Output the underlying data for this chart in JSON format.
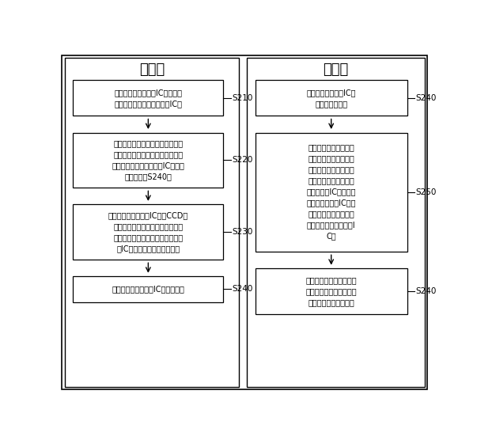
{
  "title_left": "放料部",
  "title_right": "取料部",
  "bg_color": "#ffffff",
  "box_color": "#ffffff",
  "box_edge_color": "#000000",
  "text_color": "#000000",
  "arrow_color": "#000000",
  "left_boxes": [
    {
      "label": "S210",
      "text": "检测用于存放待烧录IC的放料点\n待烧录料区是否放满未烧录IC；"
    },
    {
      "label": "S220",
      "text": "若已放满，则控制所述取放料部根\n据预设的取放料点坐标至所述待烧\n录料区放料点吸取待烧录IC；否则\n，执行步骤S240；"
    },
    {
      "label": "S230",
      "text": "对所述吸取的待烧录IC进行CCD比\n对，若比对结果符合处于一预先设\n置的阈值范围之内，则将所述待烧\n录IC放入烧录器指定位置中；"
    },
    {
      "label": "S240",
      "text": "启动烧录器对待烧录IC进行烧录。"
    }
  ],
  "right_boxes": [
    {
      "label": "S240",
      "text": "检测已执行烧录的IC是\n否已烧录成功；"
    },
    {
      "label": "S250",
      "text": "若已烧录成功，则控制\n所述放取料部根据预设\n的放取料点坐标至所述\n已烧录料区烧录器吸取\n已烧录好的IC，之后将\n所述已烧录好的IC放置\n放取料点，所述放取料\n点用于存放已烧录好的I\nC；"
    },
    {
      "label": "S240",
      "text": "判断所述已烧录料区取料\n点是否为空，若为空，则\n控制放取料操作结束。"
    }
  ],
  "outer_border_color": "#000000",
  "font_size_title": 13,
  "font_size_box": 7,
  "font_size_label": 7.5
}
